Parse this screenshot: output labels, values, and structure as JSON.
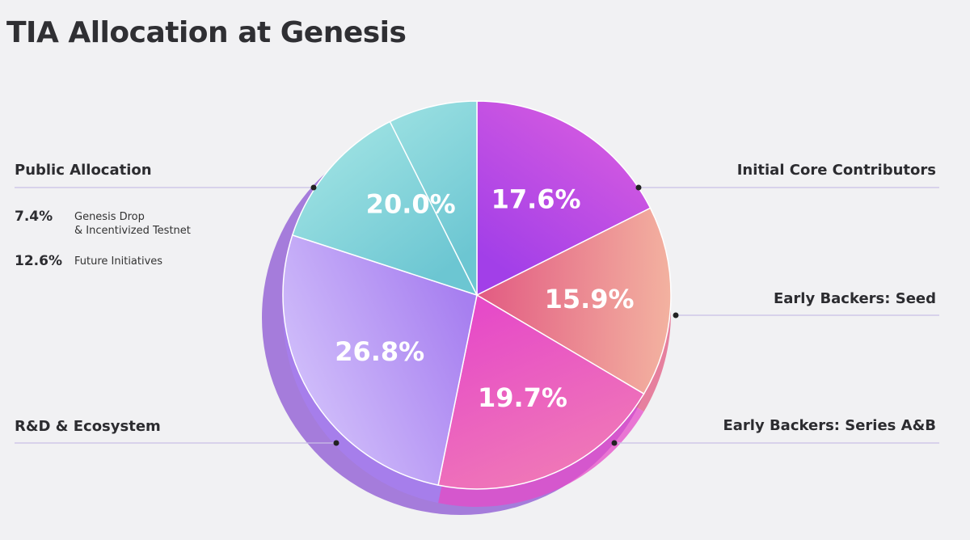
{
  "title": "TIA Allocation at Genesis",
  "chart_data": {
    "type": "pie",
    "slices": [
      {
        "label": "Initial Core Contributors",
        "value": 17.6,
        "value_label": "17.6%",
        "color": "#a23fe8",
        "color2": "#d65be0"
      },
      {
        "label": "Early Backers: Seed",
        "value": 15.9,
        "value_label": "15.9%",
        "color": "#e25a82",
        "color2": "#f3b2a0"
      },
      {
        "label": "Early Backers: Series A&B",
        "value": 19.7,
        "value_label": "19.7%",
        "color": "#e64bc8",
        "color2": "#f07ab6"
      },
      {
        "label": "R&D & Ecosystem",
        "value": 26.8,
        "value_label": "26.8%",
        "color": "#a77ff0",
        "color2": "#d3c2fb"
      },
      {
        "label": "Public Allocation",
        "value": 20.0,
        "value_label": "20.0%",
        "color": "#6cc6d2",
        "color2": "#a2e4e4"
      }
    ]
  },
  "public_allocation": {
    "items": [
      {
        "pct": "7.4%",
        "desc_line1": "Genesis Drop",
        "desc_line2": "& Incentivized Testnet"
      },
      {
        "pct": "12.6%",
        "desc_line1": "Future Initiatives",
        "desc_line2": ""
      }
    ]
  }
}
